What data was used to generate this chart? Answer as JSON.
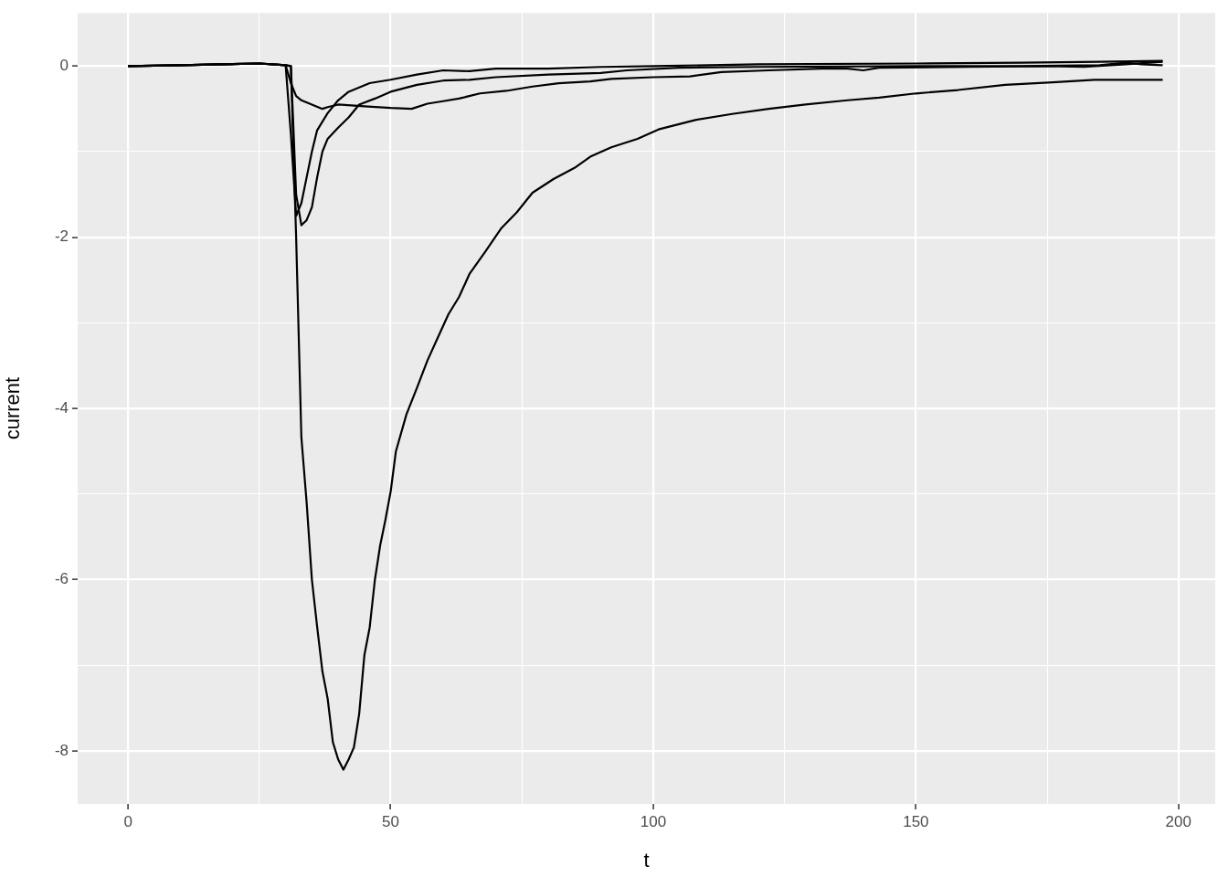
{
  "chart_data": {
    "type": "line",
    "xlabel": "t",
    "ylabel": "current",
    "xlim": [
      -9.6,
      207
    ],
    "ylim": [
      -8.62,
      0.62
    ],
    "xticks": [
      0,
      {
        "value": 25,
        "label": null
      },
      50,
      {
        "value": 75,
        "label": null
      },
      100,
      {
        "value": 125,
        "label": null
      },
      150,
      {
        "value": 175,
        "label": null
      },
      200
    ],
    "yticks": [
      -8,
      {
        "value": -7,
        "label": null
      },
      -6,
      {
        "value": -5,
        "label": null
      },
      -4,
      {
        "value": -3,
        "label": null
      },
      -2,
      {
        "value": -1,
        "label": null
      },
      0
    ],
    "grid": true,
    "legend": false,
    "marker": "none",
    "line_style": "solid",
    "series": [
      {
        "color": "#000000",
        "x": [
          0,
          10,
          25,
          30,
          31,
          32,
          33,
          34,
          35,
          36,
          37,
          38,
          39,
          40,
          41,
          42,
          43,
          44,
          45,
          46,
          47,
          48,
          49,
          50,
          51,
          53,
          55,
          57,
          59,
          61,
          63,
          65,
          68,
          71,
          74,
          77,
          81,
          85,
          88,
          92,
          97,
          101,
          108,
          115,
          122,
          129,
          137,
          143,
          150,
          158,
          167,
          176,
          184,
          195,
          197
        ],
        "values": [
          0,
          0.01,
          0.03,
          0.01,
          0,
          -2.0,
          -4.34,
          -5.1,
          -6.0,
          -6.55,
          -7.07,
          -7.39,
          -7.9,
          -8.1,
          -8.22,
          -8.1,
          -7.96,
          -7.57,
          -6.88,
          -6.56,
          -6.0,
          -5.6,
          -5.3,
          -4.97,
          -4.5,
          -4.07,
          -3.76,
          -3.44,
          -3.17,
          -2.9,
          -2.7,
          -2.43,
          -2.17,
          -1.9,
          -1.71,
          -1.48,
          -1.32,
          -1.19,
          -1.06,
          -0.95,
          -0.85,
          -0.74,
          -0.63,
          -0.56,
          -0.5,
          -0.45,
          -0.4,
          -0.37,
          -0.32,
          -0.28,
          -0.22,
          -0.19,
          -0.16,
          -0.16,
          -0.16
        ]
      },
      {
        "color": "#000000",
        "x": [
          0,
          10,
          25,
          30,
          31,
          32,
          33,
          34,
          35,
          36,
          37,
          38,
          40,
          42,
          44,
          47,
          50,
          55,
          60,
          65,
          70,
          80,
          90,
          95,
          105,
          120,
          150,
          170,
          185,
          190,
          193,
          197
        ],
        "values": [
          0,
          0.01,
          0.03,
          0.01,
          0,
          -1.5,
          -1.86,
          -1.8,
          -1.65,
          -1.3,
          -1.0,
          -0.85,
          -0.72,
          -0.6,
          -0.45,
          -0.38,
          -0.3,
          -0.22,
          -0.17,
          -0.16,
          -0.13,
          -0.1,
          -0.08,
          -0.05,
          -0.02,
          -0.01,
          0,
          0,
          0.01,
          0.04,
          0.02,
          0.01
        ]
      },
      {
        "color": "#000000",
        "x": [
          0,
          10,
          25,
          30,
          31,
          32,
          33,
          34,
          35,
          36,
          38,
          40,
          42,
          44,
          46,
          50,
          55,
          60,
          65,
          70,
          80,
          90,
          100,
          120,
          150,
          170,
          185,
          197
        ],
        "values": [
          0,
          0.01,
          0.03,
          0.01,
          -0.8,
          -1.75,
          -1.6,
          -1.3,
          -1.0,
          -0.75,
          -0.55,
          -0.4,
          -0.3,
          -0.25,
          -0.2,
          -0.16,
          -0.1,
          -0.05,
          -0.06,
          -0.03,
          -0.03,
          -0.01,
          0,
          0.02,
          0.03,
          0.04,
          0.05,
          0.06
        ]
      },
      {
        "color": "#000000",
        "x": [
          0,
          10,
          25,
          30,
          31,
          32,
          33,
          35,
          37,
          38,
          40,
          45,
          50,
          54,
          57,
          60,
          63,
          67,
          72,
          77,
          82,
          88,
          92,
          100,
          107,
          113,
          122,
          132,
          137,
          140,
          143,
          160,
          175,
          182,
          190,
          197
        ],
        "values": [
          0,
          0.01,
          0.03,
          0.01,
          -0.2,
          -0.35,
          -0.4,
          -0.45,
          -0.5,
          -0.48,
          -0.45,
          -0.47,
          -0.49,
          -0.5,
          -0.44,
          -0.41,
          -0.38,
          -0.32,
          -0.29,
          -0.24,
          -0.2,
          -0.18,
          -0.15,
          -0.13,
          -0.12,
          -0.07,
          -0.05,
          -0.03,
          -0.03,
          -0.05,
          -0.02,
          -0.01,
          0,
          -0.01,
          0.02,
          0.05
        ]
      }
    ]
  }
}
